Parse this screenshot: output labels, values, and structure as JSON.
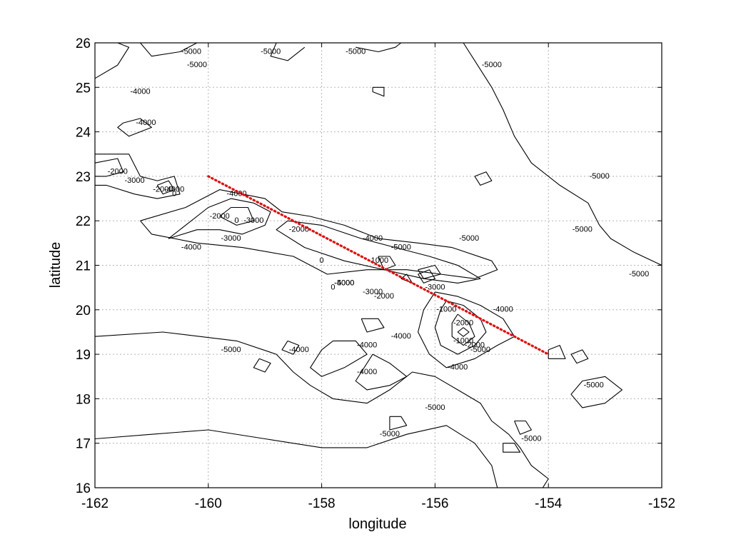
{
  "chart_data": {
    "type": "contour",
    "xlabel": "longitude",
    "ylabel": "latitude",
    "xlim": [
      -162,
      -152
    ],
    "ylim": [
      16,
      26
    ],
    "x_ticks": [
      -162,
      -160,
      -158,
      -156,
      -154,
      -152
    ],
    "y_ticks": [
      16,
      17,
      18,
      19,
      20,
      21,
      22,
      23,
      24,
      25,
      26
    ],
    "grid": true,
    "line_color": "#000000",
    "grid_color": "#b5b5b5",
    "contour_labels": [
      {
        "text": "-5000",
        "lon": -158.9,
        "lat": 25.8
      },
      {
        "text": "-5000",
        "lon": -155.0,
        "lat": 25.5
      },
      {
        "text": "-5000",
        "lon": -153.1,
        "lat": 23.0
      },
      {
        "text": "-5000",
        "lon": -152.4,
        "lat": 20.8
      },
      {
        "text": "-5000",
        "lon": -153.4,
        "lat": 21.8
      },
      {
        "text": "-5000",
        "lon": -155.4,
        "lat": 21.6
      },
      {
        "text": "-5000",
        "lon": -156.6,
        "lat": 21.4
      },
      {
        "text": "-5000",
        "lon": -157.4,
        "lat": 25.8
      },
      {
        "text": "-5000",
        "lon": -160.3,
        "lat": 25.8
      },
      {
        "text": "-5000",
        "lon": -160.2,
        "lat": 25.5
      },
      {
        "text": "-5000",
        "lon": -156.0,
        "lat": 17.8
      },
      {
        "text": "-5000",
        "lon": -156.8,
        "lat": 17.2
      },
      {
        "text": "-5000",
        "lon": -154.3,
        "lat": 17.1
      },
      {
        "text": "-5000",
        "lon": -159.6,
        "lat": 19.1
      },
      {
        "text": "-5000",
        "lon": -153.2,
        "lat": 18.3
      },
      {
        "text": "-5000",
        "lon": -155.2,
        "lat": 19.1
      },
      {
        "text": "-5000",
        "lon": -157.6,
        "lat": 20.6
      },
      {
        "text": "-4000",
        "lon": -161.2,
        "lat": 24.9
      },
      {
        "text": "-4000",
        "lon": -161.1,
        "lat": 24.2
      },
      {
        "text": "-4000",
        "lon": -160.6,
        "lat": 22.7
      },
      {
        "text": "-4000",
        "lon": -159.5,
        "lat": 22.6
      },
      {
        "text": "-4000",
        "lon": -160.3,
        "lat": 21.4
      },
      {
        "text": "-4000",
        "lon": -157.1,
        "lat": 21.6
      },
      {
        "text": "-4000",
        "lon": -157.6,
        "lat": 20.6
      },
      {
        "text": "-4000",
        "lon": -158.4,
        "lat": 19.1
      },
      {
        "text": "-4000",
        "lon": -157.2,
        "lat": 19.2
      },
      {
        "text": "-4000",
        "lon": -156.6,
        "lat": 19.4
      },
      {
        "text": "-4000",
        "lon": -157.2,
        "lat": 18.6
      },
      {
        "text": "-4000",
        "lon": -155.6,
        "lat": 18.7
      },
      {
        "text": "-4000",
        "lon": -154.8,
        "lat": 20.0
      },
      {
        "text": "-3000",
        "lon": -161.3,
        "lat": 22.9
      },
      {
        "text": "-3000",
        "lon": -159.2,
        "lat": 22.0
      },
      {
        "text": "-3000",
        "lon": -159.6,
        "lat": 21.6
      },
      {
        "text": "-3000",
        "lon": -157.1,
        "lat": 20.4
      },
      {
        "text": "-3000",
        "lon": -156.0,
        "lat": 20.5
      },
      {
        "text": "-2000",
        "lon": -161.6,
        "lat": 23.1
      },
      {
        "text": "-2000",
        "lon": -160.8,
        "lat": 22.7
      },
      {
        "text": "-2000",
        "lon": -159.8,
        "lat": 22.1
      },
      {
        "text": "-2000",
        "lon": -158.4,
        "lat": 21.8
      },
      {
        "text": "-2000",
        "lon": -156.9,
        "lat": 20.3
      },
      {
        "text": "-2000",
        "lon": -155.5,
        "lat": 19.7
      },
      {
        "text": "-2000",
        "lon": -155.3,
        "lat": 19.2
      },
      {
        "text": "-1000",
        "lon": -155.8,
        "lat": 20.0
      },
      {
        "text": "-1000",
        "lon": -155.5,
        "lat": 19.3
      },
      {
        "text": "-1000",
        "lon": -157.0,
        "lat": 21.1
      },
      {
        "text": "0",
        "lon": -159.5,
        "lat": 22.0
      },
      {
        "text": "0",
        "lon": -158.0,
        "lat": 21.1
      },
      {
        "text": "0",
        "lon": -160.6,
        "lat": 22.6
      },
      {
        "text": "0",
        "lon": -157.8,
        "lat": 20.5
      }
    ],
    "contours": [
      [
        [
          -162,
          25.2
        ],
        [
          -161.6,
          25.5
        ],
        [
          -161.4,
          25.9
        ],
        [
          -161.6,
          26
        ]
      ],
      [
        [
          -161.5,
          24.2
        ],
        [
          -161.2,
          24.3
        ],
        [
          -161.0,
          24.1
        ],
        [
          -161.4,
          23.9
        ],
        [
          -161.6,
          24.1
        ],
        [
          -161.5,
          24.2
        ]
      ],
      [
        [
          -162,
          23.5
        ],
        [
          -161.4,
          23.5
        ],
        [
          -161.2,
          23.0
        ],
        [
          -160.9,
          22.9
        ],
        [
          -160.6,
          23.0
        ],
        [
          -160.5,
          22.6
        ],
        [
          -160.9,
          22.5
        ],
        [
          -161.3,
          22.6
        ],
        [
          -161.8,
          22.8
        ],
        [
          -162,
          22.8
        ]
      ],
      [
        [
          -162,
          23.3
        ],
        [
          -161.6,
          23.4
        ],
        [
          -161.5,
          23.1
        ],
        [
          -161.8,
          23.0
        ],
        [
          -162,
          23.0
        ]
      ],
      [
        [
          -160.9,
          22.8
        ],
        [
          -160.7,
          22.9
        ],
        [
          -160.6,
          22.7
        ],
        [
          -160.8,
          22.6
        ],
        [
          -160.9,
          22.8
        ]
      ],
      [
        [
          -160.0,
          22.3
        ],
        [
          -159.6,
          22.5
        ],
        [
          -159.2,
          22.4
        ],
        [
          -158.9,
          22.2
        ],
        [
          -159.0,
          21.9
        ],
        [
          -159.4,
          21.7
        ],
        [
          -159.8,
          21.8
        ],
        [
          -160.2,
          21.8
        ],
        [
          -160.7,
          21.6
        ],
        [
          -160.4,
          21.9
        ],
        [
          -160.0,
          22.3
        ]
      ],
      [
        [
          -159.8,
          22.1
        ],
        [
          -159.6,
          22.3
        ],
        [
          -159.3,
          22.3
        ],
        [
          -159.2,
          22.0
        ],
        [
          -159.5,
          21.9
        ],
        [
          -159.8,
          22.1
        ]
      ],
      [
        [
          -161.2,
          22.0
        ],
        [
          -160.4,
          22.3
        ],
        [
          -159.8,
          22.7
        ],
        [
          -159.0,
          22.5
        ],
        [
          -158.7,
          22.2
        ],
        [
          -158.2,
          22.1
        ],
        [
          -157.6,
          21.9
        ],
        [
          -157.0,
          21.6
        ],
        [
          -156.3,
          21.5
        ],
        [
          -155.7,
          21.4
        ],
        [
          -155.0,
          21.1
        ],
        [
          -154.9,
          20.9
        ],
        [
          -155.3,
          20.7
        ],
        [
          -155.9,
          20.8
        ],
        [
          -156.5,
          20.9
        ],
        [
          -157.2,
          20.9
        ],
        [
          -157.9,
          20.8
        ],
        [
          -158.5,
          21.2
        ],
        [
          -159.4,
          21.4
        ],
        [
          -160.2,
          21.5
        ],
        [
          -161.0,
          21.7
        ],
        [
          -161.2,
          22.0
        ]
      ],
      [
        [
          -158.6,
          22.0
        ],
        [
          -158.0,
          21.9
        ],
        [
          -157.3,
          21.6
        ],
        [
          -156.7,
          21.4
        ],
        [
          -156.1,
          21.2
        ],
        [
          -155.6,
          21.0
        ],
        [
          -155.2,
          20.7
        ],
        [
          -155.6,
          20.6
        ],
        [
          -156.2,
          20.7
        ],
        [
          -156.9,
          20.9
        ],
        [
          -157.6,
          21.1
        ],
        [
          -158.3,
          21.4
        ],
        [
          -158.8,
          21.8
        ],
        [
          -158.6,
          22.0
        ]
      ],
      [
        [
          -157.0,
          21.2
        ],
        [
          -156.8,
          21.2
        ],
        [
          -156.7,
          21.0
        ],
        [
          -156.9,
          20.9
        ],
        [
          -157.0,
          21.2
        ]
      ],
      [
        [
          -156.3,
          20.9
        ],
        [
          -156.0,
          21.0
        ],
        [
          -155.9,
          20.8
        ],
        [
          -156.2,
          20.7
        ],
        [
          -156.3,
          20.9
        ]
      ],
      [
        [
          -156.3,
          20.8
        ],
        [
          -156.1,
          20.9
        ],
        [
          -156.0,
          20.7
        ],
        [
          -156.2,
          20.6
        ],
        [
          -156.3,
          20.8
        ]
      ],
      [
        [
          -156.6,
          20.7
        ],
        [
          -156.5,
          20.8
        ],
        [
          -156.4,
          20.6
        ],
        [
          -156.6,
          20.7
        ]
      ],
      [
        [
          -156.0,
          20.4
        ],
        [
          -155.6,
          20.3
        ],
        [
          -155.2,
          20.1
        ],
        [
          -154.8,
          19.8
        ],
        [
          -154.6,
          19.4
        ],
        [
          -154.9,
          19.2
        ],
        [
          -155.3,
          18.9
        ],
        [
          -155.8,
          18.7
        ],
        [
          -156.1,
          19.0
        ],
        [
          -156.3,
          19.5
        ],
        [
          -156.2,
          20.0
        ],
        [
          -156.0,
          20.4
        ]
      ],
      [
        [
          -155.8,
          20.2
        ],
        [
          -155.5,
          20.1
        ],
        [
          -155.2,
          19.8
        ],
        [
          -155.1,
          19.5
        ],
        [
          -155.3,
          19.2
        ],
        [
          -155.6,
          19.0
        ],
        [
          -155.9,
          19.2
        ],
        [
          -156.0,
          19.6
        ],
        [
          -155.9,
          20.0
        ],
        [
          -155.8,
          20.2
        ]
      ],
      [
        [
          -155.6,
          19.9
        ],
        [
          -155.4,
          19.7
        ],
        [
          -155.3,
          19.4
        ],
        [
          -155.5,
          19.2
        ],
        [
          -155.7,
          19.4
        ],
        [
          -155.7,
          19.7
        ],
        [
          -155.6,
          19.9
        ]
      ],
      [
        [
          -155.5,
          19.6
        ],
        [
          -155.4,
          19.5
        ],
        [
          -155.5,
          19.4
        ],
        [
          -155.6,
          19.5
        ],
        [
          -155.5,
          19.6
        ]
      ],
      [
        [
          -157.3,
          19.8
        ],
        [
          -157.0,
          19.8
        ],
        [
          -156.9,
          19.6
        ],
        [
          -157.2,
          19.5
        ],
        [
          -157.3,
          19.8
        ]
      ],
      [
        [
          -157.8,
          19.3
        ],
        [
          -157.4,
          19.3
        ],
        [
          -157.2,
          19.0
        ],
        [
          -157.6,
          18.7
        ],
        [
          -158.0,
          18.5
        ],
        [
          -158.2,
          18.7
        ],
        [
          -158.0,
          19.1
        ],
        [
          -157.8,
          19.3
        ]
      ],
      [
        [
          -157.1,
          19.0
        ],
        [
          -156.8,
          18.8
        ],
        [
          -156.5,
          18.5
        ],
        [
          -156.8,
          18.3
        ],
        [
          -157.2,
          18.2
        ],
        [
          -157.4,
          18.4
        ],
        [
          -157.1,
          19.0
        ]
      ],
      [
        [
          -158.6,
          19.3
        ],
        [
          -158.4,
          19.2
        ],
        [
          -158.5,
          19.0
        ],
        [
          -158.7,
          19.1
        ],
        [
          -158.6,
          19.3
        ]
      ],
      [
        [
          -159.1,
          18.9
        ],
        [
          -158.9,
          18.8
        ],
        [
          -159.0,
          18.6
        ],
        [
          -159.2,
          18.7
        ],
        [
          -159.1,
          18.9
        ]
      ],
      [
        [
          -162,
          19.4
        ],
        [
          -160.8,
          19.5
        ],
        [
          -159.5,
          19.3
        ],
        [
          -158.8,
          19.0
        ],
        [
          -158.5,
          18.6
        ],
        [
          -158.2,
          18.3
        ],
        [
          -157.8,
          18.0
        ],
        [
          -157.2,
          17.9
        ],
        [
          -156.8,
          18.2
        ],
        [
          -156.4,
          18.6
        ],
        [
          -156.0,
          18.5
        ],
        [
          -155.6,
          18.2
        ],
        [
          -155.2,
          17.9
        ],
        [
          -155.0,
          17.5
        ],
        [
          -154.7,
          17.2
        ],
        [
          -154.5,
          16.9
        ],
        [
          -154.3,
          16.5
        ],
        [
          -154.0,
          16.2
        ],
        [
          -154.1,
          16.0
        ]
      ],
      [
        [
          -162,
          17.1
        ],
        [
          -161.0,
          17.2
        ],
        [
          -160.0,
          17.3
        ],
        [
          -159.0,
          17.1
        ],
        [
          -158.0,
          16.9
        ],
        [
          -157.2,
          16.9
        ],
        [
          -156.5,
          17.2
        ],
        [
          -155.8,
          17.4
        ],
        [
          -155.3,
          17.0
        ],
        [
          -155.0,
          16.5
        ],
        [
          -154.9,
          16.0
        ]
      ],
      [
        [
          -153.4,
          18.4
        ],
        [
          -153.0,
          18.5
        ],
        [
          -152.7,
          18.2
        ],
        [
          -153.0,
          17.9
        ],
        [
          -153.4,
          17.8
        ],
        [
          -153.6,
          18.1
        ],
        [
          -153.4,
          18.4
        ]
      ],
      [
        [
          -154.0,
          19.1
        ],
        [
          -153.8,
          19.2
        ],
        [
          -153.7,
          18.9
        ],
        [
          -154.0,
          18.9
        ],
        [
          -154.0,
          19.1
        ]
      ],
      [
        [
          -153.6,
          19.0
        ],
        [
          -153.4,
          19.1
        ],
        [
          -153.3,
          18.9
        ],
        [
          -153.5,
          18.8
        ],
        [
          -153.6,
          19.0
        ]
      ],
      [
        [
          -156.8,
          17.6
        ],
        [
          -156.6,
          17.6
        ],
        [
          -156.5,
          17.4
        ],
        [
          -156.8,
          17.3
        ],
        [
          -156.8,
          17.6
        ]
      ],
      [
        [
          -154.6,
          17.5
        ],
        [
          -154.4,
          17.5
        ],
        [
          -154.3,
          17.3
        ],
        [
          -154.5,
          17.2
        ],
        [
          -154.6,
          17.5
        ]
      ],
      [
        [
          -154.8,
          17.0
        ],
        [
          -154.6,
          17.0
        ],
        [
          -154.5,
          16.8
        ],
        [
          -154.8,
          16.8
        ],
        [
          -154.8,
          17.0
        ]
      ],
      [
        [
          -153.1,
          21.9
        ],
        [
          -153.3,
          22.4
        ],
        [
          -153.8,
          22.8
        ],
        [
          -154.3,
          23.3
        ],
        [
          -154.6,
          23.9
        ],
        [
          -154.8,
          24.5
        ],
        [
          -155.0,
          25.0
        ],
        [
          -155.3,
          25.6
        ],
        [
          -155.5,
          26
        ]
      ],
      [
        [
          -152,
          21.0
        ],
        [
          -152.5,
          21.3
        ],
        [
          -152.9,
          21.6
        ],
        [
          -153.1,
          21.9
        ]
      ],
      [
        [
          -155.3,
          23.0
        ],
        [
          -155.1,
          23.1
        ],
        [
          -155.0,
          22.9
        ],
        [
          -155.2,
          22.8
        ],
        [
          -155.3,
          23.0
        ]
      ],
      [
        [
          -161.2,
          26
        ],
        [
          -161.0,
          25.7
        ],
        [
          -160.5,
          25.8
        ],
        [
          -160.2,
          26
        ]
      ],
      [
        [
          -157.4,
          25.9
        ],
        [
          -157.0,
          25.8
        ],
        [
          -156.7,
          25.9
        ],
        [
          -156.6,
          26
        ]
      ],
      [
        [
          -158.8,
          26
        ],
        [
          -158.9,
          25.7
        ],
        [
          -158.6,
          25.6
        ],
        [
          -158.3,
          25.9
        ]
      ],
      [
        [
          -157.1,
          25.0
        ],
        [
          -156.9,
          25.0
        ],
        [
          -156.9,
          24.8
        ],
        [
          -157.1,
          24.9
        ],
        [
          -157.1,
          25.0
        ]
      ]
    ],
    "transect": {
      "color": "#dd1111",
      "points": [
        [
          -160.0,
          23.0
        ],
        [
          -154.0,
          19.0
        ]
      ]
    }
  }
}
